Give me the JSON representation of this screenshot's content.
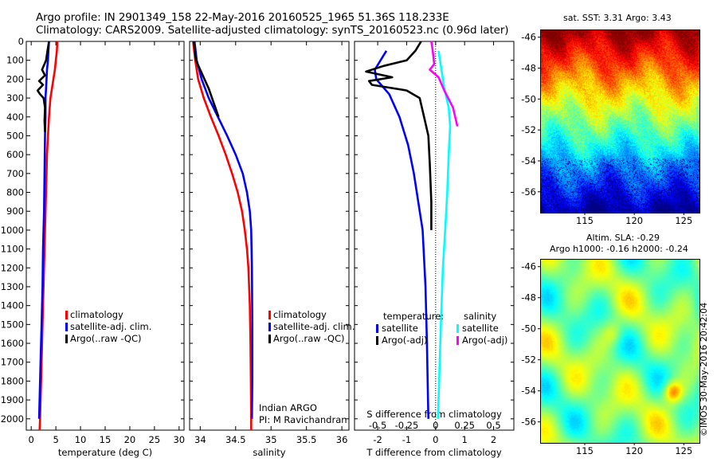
{
  "title": {
    "line1": "Argo profile: IN 2901349_158 22-May-2016 20160525_1965 51.36S 118.233E",
    "line2": "Climatology: CARS2009. Satellite-adjusted climatology: synTS_20160523.nc (0.96d later)"
  },
  "credit": "©IMOS 30-May-2016 20:42:04",
  "chart_data": [
    {
      "type": "line",
      "xlabel": "temperature (deg C)",
      "ylabel": "",
      "xlim": [
        -1,
        31
      ],
      "ylim": [
        2060,
        0
      ],
      "xticks": [
        0,
        5,
        10,
        15,
        20,
        25,
        30
      ],
      "yticks": [
        0,
        100,
        200,
        300,
        400,
        500,
        600,
        700,
        800,
        900,
        1000,
        1100,
        1200,
        1300,
        1400,
        1500,
        1600,
        1700,
        1800,
        1900,
        2000
      ],
      "legend": [
        "climatology",
        "satellite-adj. clim.",
        "Argo(..raw -QC)"
      ],
      "series": [
        {
          "name": "climatology",
          "color": "#ff0000",
          "points": [
            [
              5.3,
              0
            ],
            [
              5.2,
              50
            ],
            [
              5.0,
              100
            ],
            [
              4.8,
              150
            ],
            [
              4.5,
              200
            ],
            [
              4.2,
              250
            ],
            [
              3.9,
              300
            ],
            [
              3.6,
              400
            ],
            [
              3.4,
              500
            ],
            [
              3.2,
              600
            ],
            [
              3.0,
              800
            ],
            [
              2.8,
              1000
            ],
            [
              2.6,
              1200
            ],
            [
              2.4,
              1400
            ],
            [
              2.2,
              1600
            ],
            [
              2.0,
              1800
            ],
            [
              1.8,
              2000
            ],
            [
              1.7,
              2060
            ]
          ]
        },
        {
          "name": "satellite-adj. clim.",
          "color": "#0000ff",
          "points": [
            [
              3.6,
              0
            ],
            [
              3.5,
              50
            ],
            [
              3.4,
              100
            ],
            [
              3.2,
              150
            ],
            [
              3.1,
              200
            ],
            [
              3.0,
              250
            ],
            [
              2.9,
              300
            ],
            [
              2.9,
              400
            ],
            [
              2.8,
              500
            ],
            [
              2.7,
              700
            ],
            [
              2.6,
              900
            ],
            [
              2.4,
              1100
            ],
            [
              2.3,
              1300
            ],
            [
              2.1,
              1500
            ],
            [
              1.9,
              1700
            ],
            [
              1.7,
              1900
            ],
            [
              1.6,
              2000
            ]
          ]
        },
        {
          "name": "Argo(..raw -QC)",
          "color": "#000000",
          "points": [
            [
              3.6,
              0
            ],
            [
              3.3,
              50
            ],
            [
              3.0,
              100
            ],
            [
              2.2,
              150
            ],
            [
              2.8,
              180
            ],
            [
              1.6,
              210
            ],
            [
              2.4,
              230
            ],
            [
              1.3,
              260
            ],
            [
              1.8,
              280
            ],
            [
              2.5,
              300
            ],
            [
              2.8,
              350
            ],
            [
              2.7,
              420
            ],
            [
              2.8,
              480
            ]
          ]
        }
      ]
    },
    {
      "type": "line",
      "xlabel": "salinity",
      "ylabel": "",
      "xlim": [
        33.85,
        36.1
      ],
      "ylim": [
        2060,
        0
      ],
      "xticks": [
        34,
        34.5,
        35,
        35.5,
        36
      ],
      "legend": [
        "climatology",
        "satellite-adj. clim.",
        "Argo(..raw -QC)"
      ],
      "annotation": [
        "Indian ARGO",
        "PI: M Ravichandran"
      ],
      "series": [
        {
          "name": "climatology",
          "color": "#ff0000",
          "points": [
            [
              33.9,
              0
            ],
            [
              33.93,
              100
            ],
            [
              33.97,
              200
            ],
            [
              34.05,
              300
            ],
            [
              34.15,
              400
            ],
            [
              34.26,
              500
            ],
            [
              34.36,
              600
            ],
            [
              34.45,
              700
            ],
            [
              34.53,
              800
            ],
            [
              34.59,
              900
            ],
            [
              34.63,
              1000
            ],
            [
              34.66,
              1100
            ],
            [
              34.68,
              1200
            ],
            [
              34.69,
              1300
            ],
            [
              34.7,
              1400
            ],
            [
              34.705,
              1500
            ],
            [
              34.71,
              1600
            ],
            [
              34.715,
              1800
            ],
            [
              34.72,
              2000
            ],
            [
              34.72,
              2060
            ]
          ]
        },
        {
          "name": "satellite-adj. clim.",
          "color": "#0000ff",
          "points": [
            [
              33.92,
              0
            ],
            [
              33.95,
              100
            ],
            [
              34.02,
              200
            ],
            [
              34.12,
              300
            ],
            [
              34.25,
              400
            ],
            [
              34.38,
              500
            ],
            [
              34.5,
              600
            ],
            [
              34.6,
              700
            ],
            [
              34.66,
              800
            ],
            [
              34.7,
              900
            ],
            [
              34.72,
              1000
            ],
            [
              34.73,
              1200
            ],
            [
              34.735,
              1500
            ],
            [
              34.735,
              1800
            ],
            [
              34.73,
              2000
            ]
          ]
        },
        {
          "name": "Argo(..raw -QC)",
          "color": "#000000",
          "points": [
            [
              33.91,
              0
            ],
            [
              33.94,
              100
            ],
            [
              34.0,
              150
            ],
            [
              34.12,
              250
            ],
            [
              34.26,
              400
            ]
          ]
        }
      ]
    },
    {
      "type": "line",
      "xlabel": "T difference from climatology",
      "ylabel": "",
      "xlim": [
        -2.8,
        2.7
      ],
      "ylim": [
        2060,
        0
      ],
      "xticks": [
        -2,
        -1,
        0,
        1,
        2
      ],
      "top_label": "S difference from climatology",
      "top_xticks": [
        -0.5,
        -0.25,
        0,
        0.25,
        0.5
      ],
      "legend_headers": [
        "temperature:",
        "salinity"
      ],
      "legend": [
        "satellite",
        "Argo(-adj)",
        "satellite",
        "Argo(-adj)"
      ],
      "series": [
        {
          "name": "satellite",
          "color": "#0000ff",
          "points": [
            [
              -1.7,
              50
            ],
            [
              -1.9,
              100
            ],
            [
              -2.1,
              150
            ],
            [
              -2.05,
              200
            ],
            [
              -1.6,
              280
            ],
            [
              -1.25,
              400
            ],
            [
              -0.95,
              550
            ],
            [
              -0.75,
              700
            ],
            [
              -0.6,
              850
            ],
            [
              -0.45,
              1000
            ],
            [
              -0.35,
              1300
            ],
            [
              -0.3,
              1600
            ],
            [
              -0.25,
              2000
            ]
          ]
        },
        {
          "name": "Argo(-adj)",
          "color": "#000000",
          "points": [
            [
              -0.5,
              0
            ],
            [
              -0.7,
              50
            ],
            [
              -1.0,
              100
            ],
            [
              -1.8,
              130
            ],
            [
              -2.4,
              160
            ],
            [
              -1.5,
              190
            ],
            [
              -2.3,
              210
            ],
            [
              -2.2,
              230
            ],
            [
              -1.0,
              260
            ],
            [
              -0.55,
              300
            ],
            [
              -0.4,
              400
            ],
            [
              -0.25,
              500
            ],
            [
              -0.2,
              650
            ],
            [
              -0.15,
              850
            ],
            [
              -0.15,
              1000
            ]
          ]
        },
        {
          "name": "salinity satellite",
          "color": "#00ffff",
          "points": [
            [
              0.1,
              50
            ],
            [
              0.2,
              150
            ],
            [
              0.3,
              250
            ],
            [
              0.45,
              350
            ],
            [
              0.5,
              450
            ],
            [
              0.45,
              600
            ],
            [
              0.4,
              800
            ],
            [
              0.33,
              1000
            ],
            [
              0.25,
              1200
            ],
            [
              0.18,
              1500
            ],
            [
              0.12,
              1800
            ],
            [
              0.08,
              2000
            ]
          ]
        },
        {
          "name": "salinity Argo(-adj)",
          "color": "#ff00ff",
          "points": [
            [
              -0.15,
              0
            ],
            [
              -0.1,
              50
            ],
            [
              -0.05,
              120
            ],
            [
              -0.2,
              150
            ],
            [
              0.1,
              190
            ],
            [
              0.3,
              260
            ],
            [
              0.6,
              350
            ],
            [
              0.75,
              450
            ]
          ]
        }
      ]
    },
    {
      "type": "heatmap",
      "title": "sat. SST: 3.31  Argo: 3.43",
      "xticks": [
        115,
        120,
        125
      ],
      "yticks": [
        -46,
        -48,
        -50,
        -52,
        -54,
        -56
      ],
      "xlim": [
        110.5,
        126.5
      ],
      "ylim": [
        -57.3,
        -45.5
      ]
    },
    {
      "type": "heatmap",
      "title": "Altim. SLA: -0.29",
      "subtitle": "Argo h1000: -0.16 h2000: -0.24",
      "xticks": [
        115,
        120,
        125
      ],
      "yticks": [
        -46,
        -48,
        -50,
        -52,
        -54,
        -56
      ],
      "xlim": [
        110.5,
        126.5
      ],
      "ylim": [
        -57.3,
        -45.5
      ]
    }
  ]
}
